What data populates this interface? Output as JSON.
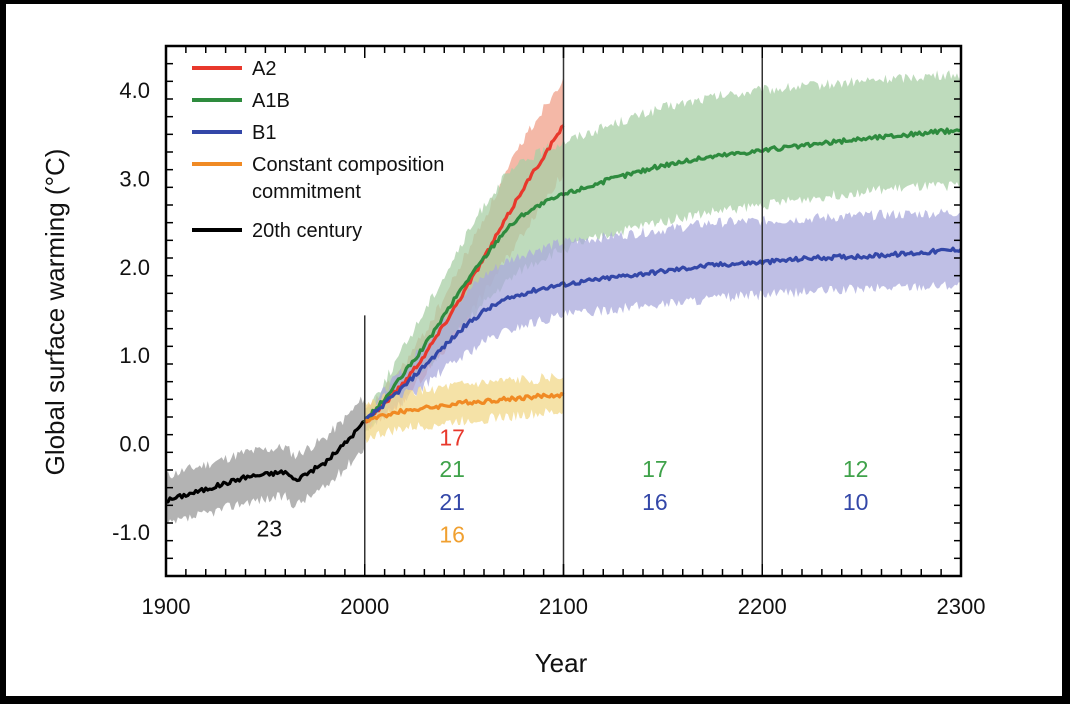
{
  "chart_data": {
    "type": "line",
    "xlabel": "Year",
    "ylabel": "Global surface warming (°C)",
    "xlim": [
      1900,
      2300
    ],
    "ylim": [
      -1.5,
      4.5
    ],
    "x_ticks": [
      1900,
      2000,
      2100,
      2200,
      2300
    ],
    "x_tick_labels": [
      "1900",
      "2000",
      "2100",
      "2200",
      "2300"
    ],
    "y_ticks": [
      -1.0,
      0.0,
      1.0,
      2.0,
      3.0,
      4.0
    ],
    "y_tick_labels": [
      "-1.0",
      "0.0",
      "1.0",
      "2.0",
      "3.0",
      "4.0"
    ],
    "vertical_lines": [
      2000,
      2100,
      2200
    ],
    "legend_position": "top-left",
    "legend": [
      {
        "label": "A2",
        "color": "#e8382c"
      },
      {
        "label": "A1B",
        "color": "#2e8b3e"
      },
      {
        "label": "B1",
        "color": "#3347a8"
      },
      {
        "label": "Constant composition",
        "label2": "commitment",
        "color": "#f08a24"
      },
      {
        "label": "20th century",
        "color": "#000000"
      }
    ],
    "series": [
      {
        "name": "20th century",
        "color": "#000000",
        "band_color": "#9a9a9a",
        "x": [
          1900,
          1910,
          1920,
          1930,
          1940,
          1950,
          1960,
          1965,
          1970,
          1980,
          1990,
          2000
        ],
        "values": [
          -0.65,
          -0.58,
          -0.52,
          -0.45,
          -0.38,
          -0.35,
          -0.32,
          -0.42,
          -0.35,
          -0.22,
          0.0,
          0.25
        ],
        "band": 0.28
      },
      {
        "name": "A2",
        "color": "#e8382c",
        "band_color": "#f0a08a",
        "x": [
          2000,
          2010,
          2020,
          2030,
          2040,
          2050,
          2060,
          2070,
          2080,
          2090,
          2100
        ],
        "values": [
          0.25,
          0.45,
          0.7,
          1.0,
          1.35,
          1.72,
          2.1,
          2.5,
          2.9,
          3.25,
          3.6
        ],
        "band_upper": [
          0.35,
          0.6,
          0.9,
          1.25,
          1.65,
          2.1,
          2.55,
          3.0,
          3.45,
          3.8,
          4.15
        ],
        "band_lower": [
          0.15,
          0.3,
          0.5,
          0.78,
          1.05,
          1.38,
          1.7,
          2.05,
          2.4,
          2.75,
          3.05
        ]
      },
      {
        "name": "A1B",
        "color": "#2e8b3e",
        "band_color": "#a8cfa6",
        "x": [
          2000,
          2010,
          2020,
          2030,
          2040,
          2050,
          2060,
          2070,
          2080,
          2090,
          2100,
          2125,
          2150,
          2175,
          2200,
          2225,
          2250,
          2275,
          2300
        ],
        "values": [
          0.25,
          0.5,
          0.8,
          1.1,
          1.45,
          1.8,
          2.1,
          2.4,
          2.6,
          2.72,
          2.82,
          3.0,
          3.15,
          3.25,
          3.32,
          3.38,
          3.45,
          3.5,
          3.55
        ],
        "band_upper": [
          0.35,
          0.7,
          1.1,
          1.5,
          1.9,
          2.3,
          2.7,
          3.0,
          3.2,
          3.32,
          3.42,
          3.62,
          3.8,
          3.92,
          4.0,
          4.05,
          4.1,
          4.15,
          4.18
        ],
        "band_lower": [
          0.15,
          0.35,
          0.58,
          0.82,
          1.08,
          1.35,
          1.58,
          1.8,
          1.98,
          2.1,
          2.2,
          2.38,
          2.52,
          2.62,
          2.7,
          2.78,
          2.85,
          2.9,
          2.92
        ]
      },
      {
        "name": "B1",
        "color": "#3347a8",
        "band_color": "#aaa9dc",
        "x": [
          2000,
          2010,
          2020,
          2030,
          2040,
          2050,
          2060,
          2070,
          2080,
          2090,
          2100,
          2125,
          2150,
          2175,
          2200,
          2225,
          2250,
          2275,
          2300
        ],
        "values": [
          0.25,
          0.45,
          0.65,
          0.88,
          1.1,
          1.32,
          1.5,
          1.62,
          1.7,
          1.76,
          1.8,
          1.88,
          1.95,
          2.02,
          2.05,
          2.1,
          2.12,
          2.15,
          2.2
        ],
        "band_upper": [
          0.33,
          0.6,
          0.85,
          1.12,
          1.4,
          1.68,
          1.9,
          2.05,
          2.15,
          2.22,
          2.28,
          2.35,
          2.42,
          2.5,
          2.52,
          2.55,
          2.58,
          2.6,
          2.62
        ],
        "band_lower": [
          0.17,
          0.32,
          0.48,
          0.66,
          0.84,
          1.0,
          1.15,
          1.26,
          1.34,
          1.4,
          1.45,
          1.52,
          1.58,
          1.64,
          1.68,
          1.72,
          1.75,
          1.78,
          1.8
        ]
      },
      {
        "name": "Constant composition commitment",
        "color": "#f08a24",
        "band_color": "#f2d88a",
        "x": [
          2000,
          2010,
          2020,
          2030,
          2040,
          2050,
          2060,
          2070,
          2080,
          2090,
          2100
        ],
        "values": [
          0.25,
          0.32,
          0.37,
          0.4,
          0.43,
          0.46,
          0.48,
          0.5,
          0.52,
          0.54,
          0.55
        ],
        "band": 0.2
      }
    ],
    "model_counts": [
      {
        "text": "23",
        "x": 1952,
        "y": -1.05,
        "color": "#111111"
      },
      {
        "text": "17",
        "x": 2044,
        "y": -0.02,
        "color": "#e8382c"
      },
      {
        "text": "21",
        "x": 2044,
        "y": -0.38,
        "color": "#3fa24a"
      },
      {
        "text": "21",
        "x": 2044,
        "y": -0.75,
        "color": "#3347a8"
      },
      {
        "text": "16",
        "x": 2044,
        "y": -1.12,
        "color": "#f0a030"
      },
      {
        "text": "17",
        "x": 2146,
        "y": -0.38,
        "color": "#3fa24a"
      },
      {
        "text": "16",
        "x": 2146,
        "y": -0.75,
        "color": "#3347a8"
      },
      {
        "text": "12",
        "x": 2247,
        "y": -0.38,
        "color": "#3fa24a"
      },
      {
        "text": "10",
        "x": 2247,
        "y": -0.75,
        "color": "#3347a8"
      }
    ]
  }
}
